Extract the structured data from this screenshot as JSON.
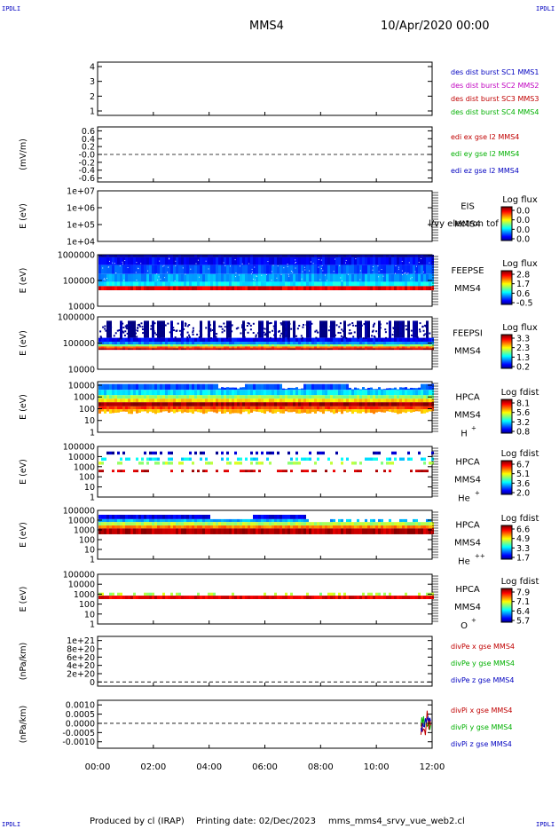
{
  "page": {
    "corner_tl": "IPDLI",
    "corner_tr": "IPDLI",
    "corner_bl": "IPDLI",
    "corner_br": "IPDLI",
    "spacecraft": "MMS4",
    "datetime": "10/Apr/2020 00:00",
    "footer_producer": "Produced by cl (IRAP)",
    "footer_date": "Printing date: 02/Dec/2023",
    "footer_file": "mms_mms4_srvy_vue_web2.cl"
  },
  "colors": {
    "frame": "#000000",
    "sc1": "#0000c0",
    "sc2": "#c000c0",
    "sc3": "#c00000",
    "sc4": "#00b000",
    "x": "#c00000",
    "y": "#00b000",
    "z": "#0000c0"
  },
  "chart_data": {
    "type": "heatmap",
    "x_ticks": [
      "00:00",
      "02:00",
      "04:00",
      "06:00",
      "08:00",
      "10:00",
      "12:00"
    ],
    "xlim_hours": [
      0,
      12
    ],
    "panels": [
      {
        "id": "dist",
        "type": "line",
        "y_ticks": [
          "4",
          "3",
          "2",
          "1"
        ],
        "y_values": [
          4,
          3,
          2,
          1
        ],
        "ylim": [
          0.7,
          4.3
        ],
        "ylabel": "",
        "legend": [
          {
            "label": "des dist burst SC1 MMS1",
            "color": "#0000c0"
          },
          {
            "label": "des dist burst SC2 MMS2",
            "color": "#c000c0"
          },
          {
            "label": "des dist burst SC3 MMS3",
            "color": "#c00000"
          },
          {
            "label": "des dist burst SC4 MMS4",
            "color": "#00b000"
          }
        ]
      },
      {
        "id": "edi",
        "type": "line",
        "y_ticks": [
          "0.6",
          "0.4",
          "0.2",
          "-0.0",
          "-0.2",
          "-0.4",
          "-0.6"
        ],
        "y_values": [
          0.6,
          0.4,
          0.2,
          0,
          -0.2,
          -0.4,
          -0.6
        ],
        "ylim": [
          -0.7,
          0.7
        ],
        "ylabel": "(mV/m)",
        "zero_line": true,
        "legend": [
          {
            "label": "edi ex gse l2 MMS4",
            "color": "#c00000"
          },
          {
            "label": "edi ey gse l2 MMS4",
            "color": "#00b000"
          },
          {
            "label": "edi ez gse l2 MMS4",
            "color": "#0000c0"
          }
        ]
      },
      {
        "id": "eis",
        "type": "heatmap",
        "y_ticks": [
          "1e+07",
          "1e+06",
          "1e+05",
          "1e+04"
        ],
        "y_values": [
          7,
          6,
          5,
          4
        ],
        "ylim": [
          4,
          7
        ],
        "ylabel": "E (eV)",
        "instrument": [
          "EIS",
          "MMS4"
        ],
        "overlay": "l/vy electron tof",
        "cbar_title": "Log flux",
        "cbar_ticks": [
          "0.0",
          "0.0",
          "0.0",
          "0.0"
        ],
        "empty": true
      },
      {
        "id": "feepse",
        "type": "heatmap",
        "y_ticks": [
          "1000000",
          "100000",
          "10000"
        ],
        "y_values": [
          6,
          5,
          4
        ],
        "ylim": [
          4,
          6
        ],
        "ylabel": "E (eV)",
        "instrument": [
          "FEEPSE",
          "MMS4"
        ],
        "cbar_title": "Log flux",
        "cbar_ticks": [
          "2.8",
          "1.7",
          "0.6",
          "-0.5"
        ],
        "bands": [
          {
            "lo": 5.9,
            "hi": 6.0,
            "level": 0.0
          },
          {
            "lo": 5.6,
            "hi": 5.9,
            "level": 0.12
          },
          {
            "lo": 5.25,
            "hi": 5.6,
            "level": 0.2
          },
          {
            "lo": 4.95,
            "hi": 5.25,
            "level": 0.28
          },
          {
            "lo": 4.78,
            "hi": 4.95,
            "level": 0.36
          },
          {
            "lo": 4.62,
            "hi": 4.78,
            "level": 0.9
          }
        ],
        "noise": "speckle"
      },
      {
        "id": "feepsi",
        "type": "heatmap",
        "y_ticks": [
          "1000000",
          "100000",
          "10000"
        ],
        "y_values": [
          6,
          5,
          4
        ],
        "ylim": [
          4,
          6
        ],
        "ylabel": "E (eV)",
        "instrument": [
          "FEEPSI",
          "MMS4"
        ],
        "cbar_title": "Log flux",
        "cbar_ticks": [
          "3.3",
          "2.3",
          "1.3",
          "0.2"
        ],
        "bands": [
          {
            "lo": 5.2,
            "hi": 5.85,
            "level": 0.0,
            "sparse": true
          },
          {
            "lo": 5.05,
            "hi": 5.2,
            "level": 0.12
          },
          {
            "lo": 4.95,
            "hi": 5.05,
            "level": 0.25
          },
          {
            "lo": 4.87,
            "hi": 4.95,
            "level": 0.5
          },
          {
            "lo": 4.8,
            "hi": 4.87,
            "level": 0.78
          },
          {
            "lo": 4.74,
            "hi": 4.8,
            "level": 0.95
          }
        ],
        "noise": "dots"
      },
      {
        "id": "hpca_h",
        "type": "heatmap",
        "y_ticks": [
          "10000",
          "1000",
          "100",
          "10",
          "1"
        ],
        "y_values": [
          4,
          3,
          2,
          1,
          0
        ],
        "ylim": [
          0,
          4.3
        ],
        "ylabel": "E (eV)",
        "instrument": [
          "HPCA",
          "MMS4",
          "H",
          "+"
        ],
        "cbar_title": "Log fdist",
        "cbar_ticks": [
          "8.1",
          "5.6",
          "3.2",
          "0.8"
        ],
        "bands": [
          {
            "lo": 3.6,
            "hi": 4.1,
            "level": 0.2,
            "cut": "hpca_top"
          },
          {
            "lo": 3.15,
            "hi": 3.6,
            "level": 0.35
          },
          {
            "lo": 2.85,
            "hi": 3.15,
            "level": 0.52
          },
          {
            "lo": 2.55,
            "hi": 2.85,
            "level": 0.66
          },
          {
            "lo": 2.2,
            "hi": 2.55,
            "level": 0.97
          },
          {
            "lo": 1.95,
            "hi": 2.2,
            "level": 0.82
          },
          {
            "lo": 1.55,
            "hi": 1.95,
            "level": 0.7,
            "ragged": true
          }
        ],
        "noise": "hpca"
      },
      {
        "id": "hpca_he1",
        "type": "heatmap",
        "y_ticks": [
          "100000",
          "10000",
          "1000",
          "100",
          "10",
          "1"
        ],
        "y_values": [
          5,
          4,
          3,
          2,
          1,
          0
        ],
        "ylim": [
          0,
          5
        ],
        "ylabel": "E (eV)",
        "instrument": [
          "HPCA",
          "MMS4",
          "He",
          "+"
        ],
        "cbar_title": "Log fdist",
        "cbar_ticks": [
          "6.7",
          "5.1",
          "3.6",
          "2.0"
        ],
        "bands": [
          {
            "lo": 4.2,
            "hi": 4.5,
            "level": 0.05,
            "sparse": true
          },
          {
            "lo": 3.6,
            "hi": 3.9,
            "level": 0.35,
            "sparse": true
          },
          {
            "lo": 3.2,
            "hi": 3.5,
            "level": 0.55,
            "sparse": true
          },
          {
            "lo": 2.45,
            "hi": 2.7,
            "level": 0.93,
            "sparse": true
          }
        ],
        "noise": "sparse"
      },
      {
        "id": "hpca_he2",
        "type": "heatmap",
        "y_ticks": [
          "100000",
          "10000",
          "1000",
          "100",
          "10",
          "1"
        ],
        "y_values": [
          5,
          4,
          3,
          2,
          1,
          0
        ],
        "ylim": [
          0,
          5
        ],
        "ylabel": "E (eV)",
        "instrument": [
          "HPCA",
          "MMS4",
          "He",
          "++"
        ],
        "cbar_title": "Log fdist",
        "cbar_ticks": [
          "6.6",
          "4.9",
          "3.3",
          "1.7"
        ],
        "bands": [
          {
            "lo": 4.1,
            "hi": 4.55,
            "level": 0.1,
            "cut": "he_top"
          },
          {
            "lo": 3.8,
            "hi": 4.1,
            "level": 0.3,
            "cut": "he_mid"
          },
          {
            "lo": 3.45,
            "hi": 3.8,
            "level": 0.55
          },
          {
            "lo": 3.15,
            "hi": 3.45,
            "level": 0.75
          },
          {
            "lo": 2.55,
            "hi": 3.15,
            "level": 0.95
          }
        ],
        "noise": "he2"
      },
      {
        "id": "hpca_o",
        "type": "heatmap",
        "y_ticks": [
          "100000",
          "10000",
          "1000",
          "100",
          "10",
          "1"
        ],
        "y_values": [
          5,
          4,
          3,
          2,
          1,
          0
        ],
        "ylim": [
          0,
          5
        ],
        "ylabel": "E (eV)",
        "instrument": [
          "HPCA",
          "MMS4",
          "O",
          "+"
        ],
        "cbar_title": "Log fdist",
        "cbar_ticks": [
          "7.9",
          "7.1",
          "6.4",
          "5.7"
        ],
        "bands": [
          {
            "lo": 2.85,
            "hi": 3.15,
            "level": 0.55,
            "sparse": true
          },
          {
            "lo": 2.5,
            "hi": 2.85,
            "level": 0.9
          }
        ],
        "noise": "o"
      },
      {
        "id": "divpe",
        "type": "line",
        "y_ticks": [
          "1e+21",
          "8e+20",
          "6e+20",
          "4e+20",
          "2e+20",
          "0"
        ],
        "y_values": [
          1e+21,
          8e+20,
          6e+20,
          4e+20,
          2e+20,
          0
        ],
        "ylim": [
          -1e+20,
          1.1e+21
        ],
        "ylabel": "(nPa/km)",
        "zero_line": true,
        "legend": [
          {
            "label": "divPe x gse MMS4",
            "color": "#c00000"
          },
          {
            "label": "divPe y gse MMS4",
            "color": "#00b000"
          },
          {
            "label": "divPe z gse MMS4",
            "color": "#0000c0"
          }
        ]
      },
      {
        "id": "divpi",
        "type": "line",
        "y_ticks": [
          "0.0010",
          "0.0005",
          "0.0000",
          "-0.0005",
          "-0.0010"
        ],
        "y_values": [
          0.001,
          0.0005,
          0,
          -0.0005,
          -0.001
        ],
        "ylim": [
          -0.00135,
          0.00125
        ],
        "ylabel": "(nPa/km)",
        "zero_line": true,
        "burst_start_hours": 11.6,
        "legend": [
          {
            "label": "divPi x gse MMS4",
            "color": "#c00000"
          },
          {
            "label": "divPi y gse MMS4",
            "color": "#00b000"
          },
          {
            "label": "divPi z gse MMS4",
            "color": "#0000c0"
          }
        ]
      }
    ]
  }
}
